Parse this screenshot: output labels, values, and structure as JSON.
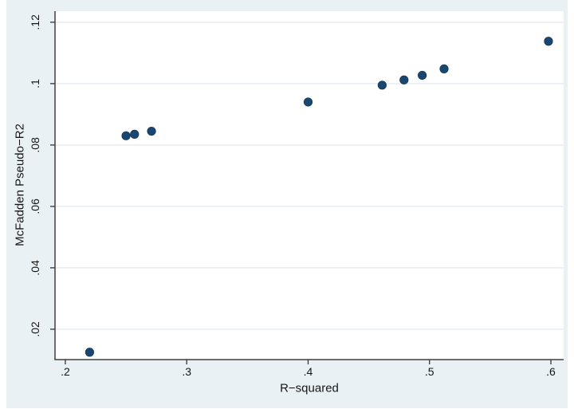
{
  "chart_data": {
    "type": "scatter",
    "title": "",
    "xlabel": "R−squared",
    "ylabel": "McFadden Pseudo−R2",
    "x_ticks": [
      0.2,
      0.3,
      0.4,
      0.5,
      0.6
    ],
    "x_tick_labels": [
      ".2",
      ".3",
      ".4",
      ".5",
      ".6"
    ],
    "y_ticks": [
      0.02,
      0.04,
      0.06,
      0.08,
      0.1,
      0.12
    ],
    "y_tick_labels": [
      ".02",
      ".04",
      ".06",
      ".08",
      ".1",
      ".12"
    ],
    "xlim": [
      0.1915,
      0.6105
    ],
    "ylim": [
      0.0101,
      0.1236
    ],
    "grid": "horizontal-gridlines-at-y-ticks",
    "legend": "none",
    "series": [
      {
        "name": "scatter-points",
        "marker": "filled-circle",
        "points": [
          {
            "x": 0.22,
            "y": 0.0125
          },
          {
            "x": 0.25,
            "y": 0.083
          },
          {
            "x": 0.257,
            "y": 0.0835
          },
          {
            "x": 0.271,
            "y": 0.0845
          },
          {
            "x": 0.4,
            "y": 0.094
          },
          {
            "x": 0.461,
            "y": 0.0995
          },
          {
            "x": 0.479,
            "y": 0.1012
          },
          {
            "x": 0.494,
            "y": 0.1027
          },
          {
            "x": 0.512,
            "y": 0.1048
          },
          {
            "x": 0.598,
            "y": 0.1138
          }
        ]
      }
    ],
    "colors": {
      "marker_fill": "#1a476f",
      "marker_edge": "#14395e",
      "figure_background": "#eaf1f5",
      "plot_background": "#ffffff",
      "gridline": "#e2eaf0",
      "axis_line": "#3f3f3f",
      "text": "#161616"
    }
  }
}
